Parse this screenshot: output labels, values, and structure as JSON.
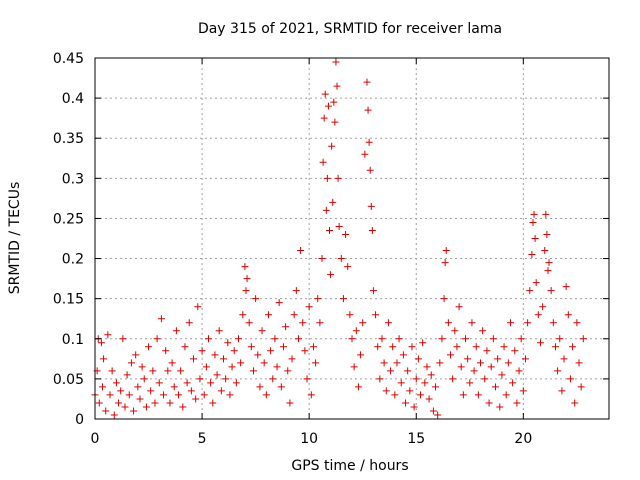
{
  "chart_data": {
    "type": "scatter",
    "title": "Day 315 of 2021, SRMTID for receiver lama",
    "xlabel": "GPS time / hours",
    "ylabel": "SRMTID / TECUs",
    "xlim": [
      0,
      24
    ],
    "ylim": [
      0,
      0.45
    ],
    "xticks": [
      0,
      5,
      10,
      15,
      20
    ],
    "xtick_labels": [
      "0",
      "5",
      "10",
      "15",
      "20"
    ],
    "yticks": [
      0,
      0.05,
      0.1,
      0.15,
      0.2,
      0.25,
      0.3,
      0.35,
      0.4,
      0.45
    ],
    "ytick_labels": [
      "0",
      "0.05",
      "0.1",
      "0.15",
      "0.2",
      "0.25",
      "0.3",
      "0.35",
      "0.4",
      "0.45"
    ],
    "grid": true,
    "marker": "+",
    "marker_color": "#e00000",
    "series": [
      {
        "name": "SRMTID",
        "points": [
          [
            0.0,
            0.03
          ],
          [
            0.1,
            0.06
          ],
          [
            0.15,
            0.1
          ],
          [
            0.2,
            0.02
          ],
          [
            0.3,
            0.095
          ],
          [
            0.35,
            0.04
          ],
          [
            0.4,
            0.075
          ],
          [
            0.5,
            0.01
          ],
          [
            0.6,
            0.105
          ],
          [
            0.7,
            0.03
          ],
          [
            0.8,
            0.06
          ],
          [
            0.9,
            0.005
          ],
          [
            1.0,
            0.045
          ],
          [
            1.1,
            0.02
          ],
          [
            1.2,
            0.035
          ],
          [
            1.3,
            0.1
          ],
          [
            1.4,
            0.015
          ],
          [
            1.5,
            0.055
          ],
          [
            1.6,
            0.03
          ],
          [
            1.7,
            0.07
          ],
          [
            1.8,
            0.01
          ],
          [
            1.9,
            0.08
          ],
          [
            2.0,
            0.04
          ],
          [
            2.1,
            0.025
          ],
          [
            2.2,
            0.065
          ],
          [
            2.3,
            0.05
          ],
          [
            2.4,
            0.015
          ],
          [
            2.5,
            0.09
          ],
          [
            2.6,
            0.035
          ],
          [
            2.7,
            0.06
          ],
          [
            2.8,
            0.02
          ],
          [
            2.9,
            0.1
          ],
          [
            3.0,
            0.045
          ],
          [
            3.1,
            0.125
          ],
          [
            3.2,
            0.03
          ],
          [
            3.3,
            0.085
          ],
          [
            3.4,
            0.06
          ],
          [
            3.5,
            0.02
          ],
          [
            3.6,
            0.07
          ],
          [
            3.7,
            0.04
          ],
          [
            3.8,
            0.11
          ],
          [
            3.9,
            0.03
          ],
          [
            4.0,
            0.06
          ],
          [
            4.1,
            0.015
          ],
          [
            4.2,
            0.09
          ],
          [
            4.3,
            0.045
          ],
          [
            4.4,
            0.12
          ],
          [
            4.5,
            0.035
          ],
          [
            4.6,
            0.075
          ],
          [
            4.7,
            0.025
          ],
          [
            4.8,
            0.14
          ],
          [
            4.9,
            0.05
          ],
          [
            5.0,
            0.085
          ],
          [
            5.1,
            0.03
          ],
          [
            5.2,
            0.065
          ],
          [
            5.3,
            0.1
          ],
          [
            5.4,
            0.045
          ],
          [
            5.5,
            0.02
          ],
          [
            5.6,
            0.08
          ],
          [
            5.7,
            0.055
          ],
          [
            5.8,
            0.11
          ],
          [
            5.9,
            0.035
          ],
          [
            6.0,
            0.075
          ],
          [
            6.1,
            0.05
          ],
          [
            6.2,
            0.095
          ],
          [
            6.3,
            0.03
          ],
          [
            6.4,
            0.065
          ],
          [
            6.5,
            0.085
          ],
          [
            6.6,
            0.045
          ],
          [
            6.7,
            0.1
          ],
          [
            6.8,
            0.07
          ],
          [
            6.9,
            0.13
          ],
          [
            7.0,
            0.19
          ],
          [
            7.05,
            0.16
          ],
          [
            7.1,
            0.175
          ],
          [
            7.2,
            0.12
          ],
          [
            7.3,
            0.09
          ],
          [
            7.4,
            0.06
          ],
          [
            7.5,
            0.15
          ],
          [
            7.6,
            0.08
          ],
          [
            7.7,
            0.04
          ],
          [
            7.8,
            0.11
          ],
          [
            7.9,
            0.07
          ],
          [
            8.0,
            0.03
          ],
          [
            8.1,
            0.13
          ],
          [
            8.2,
            0.085
          ],
          [
            8.3,
            0.05
          ],
          [
            8.4,
            0.1
          ],
          [
            8.5,
            0.065
          ],
          [
            8.6,
            0.145
          ],
          [
            8.7,
            0.04
          ],
          [
            8.8,
            0.09
          ],
          [
            8.9,
            0.115
          ],
          [
            9.0,
            0.06
          ],
          [
            9.1,
            0.02
          ],
          [
            9.2,
            0.075
          ],
          [
            9.3,
            0.13
          ],
          [
            9.4,
            0.16
          ],
          [
            9.5,
            0.1
          ],
          [
            9.6,
            0.21
          ],
          [
            9.7,
            0.12
          ],
          [
            9.8,
            0.085
          ],
          [
            9.9,
            0.05
          ],
          [
            10.0,
            0.14
          ],
          [
            10.1,
            0.03
          ],
          [
            10.2,
            0.09
          ],
          [
            10.3,
            0.07
          ],
          [
            10.4,
            0.15
          ],
          [
            10.5,
            0.12
          ],
          [
            10.6,
            0.2
          ],
          [
            10.65,
            0.32
          ],
          [
            10.7,
            0.375
          ],
          [
            10.75,
            0.405
          ],
          [
            10.8,
            0.26
          ],
          [
            10.85,
            0.3
          ],
          [
            10.9,
            0.39
          ],
          [
            10.95,
            0.235
          ],
          [
            11.0,
            0.18
          ],
          [
            11.05,
            0.34
          ],
          [
            11.1,
            0.27
          ],
          [
            11.15,
            0.395
          ],
          [
            11.2,
            0.37
          ],
          [
            11.25,
            0.445
          ],
          [
            11.3,
            0.415
          ],
          [
            11.35,
            0.3
          ],
          [
            11.4,
            0.24
          ],
          [
            11.5,
            0.2
          ],
          [
            11.6,
            0.15
          ],
          [
            11.7,
            0.23
          ],
          [
            11.8,
            0.19
          ],
          [
            11.9,
            0.13
          ],
          [
            12.0,
            0.1
          ],
          [
            12.1,
            0.065
          ],
          [
            12.2,
            0.11
          ],
          [
            12.3,
            0.04
          ],
          [
            12.4,
            0.08
          ],
          [
            12.5,
            0.12
          ],
          [
            12.6,
            0.33
          ],
          [
            12.7,
            0.42
          ],
          [
            12.75,
            0.385
          ],
          [
            12.8,
            0.345
          ],
          [
            12.85,
            0.31
          ],
          [
            12.9,
            0.265
          ],
          [
            12.95,
            0.235
          ],
          [
            13.0,
            0.16
          ],
          [
            13.1,
            0.13
          ],
          [
            13.2,
            0.09
          ],
          [
            13.3,
            0.05
          ],
          [
            13.4,
            0.1
          ],
          [
            13.5,
            0.07
          ],
          [
            13.6,
            0.035
          ],
          [
            13.7,
            0.12
          ],
          [
            13.8,
            0.06
          ],
          [
            13.9,
            0.09
          ],
          [
            14.0,
            0.03
          ],
          [
            14.1,
            0.07
          ],
          [
            14.2,
            0.1
          ],
          [
            14.3,
            0.045
          ],
          [
            14.4,
            0.08
          ],
          [
            14.5,
            0.02
          ],
          [
            14.6,
            0.06
          ],
          [
            14.7,
            0.035
          ],
          [
            14.8,
            0.09
          ],
          [
            14.9,
            0.015
          ],
          [
            15.0,
            0.05
          ],
          [
            15.1,
            0.075
          ],
          [
            15.2,
            0.03
          ],
          [
            15.3,
            0.095
          ],
          [
            15.4,
            0.045
          ],
          [
            15.5,
            0.065
          ],
          [
            15.6,
            0.025
          ],
          [
            15.7,
            0.055
          ],
          [
            15.8,
            0.01
          ],
          [
            15.9,
            0.04
          ],
          [
            16.0,
            0.005
          ],
          [
            16.1,
            0.07
          ],
          [
            16.2,
            0.1
          ],
          [
            16.3,
            0.15
          ],
          [
            16.35,
            0.195
          ],
          [
            16.4,
            0.21
          ],
          [
            16.5,
            0.12
          ],
          [
            16.6,
            0.08
          ],
          [
            16.7,
            0.05
          ],
          [
            16.8,
            0.11
          ],
          [
            16.9,
            0.09
          ],
          [
            17.0,
            0.14
          ],
          [
            17.1,
            0.065
          ],
          [
            17.2,
            0.03
          ],
          [
            17.3,
            0.1
          ],
          [
            17.4,
            0.075
          ],
          [
            17.5,
            0.045
          ],
          [
            17.6,
            0.12
          ],
          [
            17.7,
            0.06
          ],
          [
            17.8,
            0.09
          ],
          [
            17.9,
            0.03
          ],
          [
            18.0,
            0.07
          ],
          [
            18.1,
            0.11
          ],
          [
            18.2,
            0.05
          ],
          [
            18.3,
            0.085
          ],
          [
            18.4,
            0.02
          ],
          [
            18.5,
            0.065
          ],
          [
            18.6,
            0.1
          ],
          [
            18.7,
            0.04
          ],
          [
            18.8,
            0.075
          ],
          [
            18.9,
            0.015
          ],
          [
            19.0,
            0.055
          ],
          [
            19.1,
            0.09
          ],
          [
            19.2,
            0.03
          ],
          [
            19.3,
            0.07
          ],
          [
            19.4,
            0.12
          ],
          [
            19.5,
            0.045
          ],
          [
            19.6,
            0.085
          ],
          [
            19.7,
            0.02
          ],
          [
            19.8,
            0.06
          ],
          [
            19.9,
            0.1
          ],
          [
            20.0,
            0.035
          ],
          [
            20.1,
            0.075
          ],
          [
            20.2,
            0.12
          ],
          [
            20.3,
            0.16
          ],
          [
            20.4,
            0.205
          ],
          [
            20.45,
            0.245
          ],
          [
            20.5,
            0.255
          ],
          [
            20.55,
            0.225
          ],
          [
            20.6,
            0.17
          ],
          [
            20.7,
            0.13
          ],
          [
            20.8,
            0.095
          ],
          [
            20.9,
            0.14
          ],
          [
            21.0,
            0.21
          ],
          [
            21.05,
            0.255
          ],
          [
            21.1,
            0.23
          ],
          [
            21.15,
            0.185
          ],
          [
            21.2,
            0.195
          ],
          [
            21.3,
            0.16
          ],
          [
            21.4,
            0.12
          ],
          [
            21.5,
            0.09
          ],
          [
            21.6,
            0.06
          ],
          [
            21.7,
            0.1
          ],
          [
            21.8,
            0.035
          ],
          [
            21.9,
            0.075
          ],
          [
            22.0,
            0.165
          ],
          [
            22.1,
            0.13
          ],
          [
            22.2,
            0.05
          ],
          [
            22.3,
            0.09
          ],
          [
            22.4,
            0.02
          ],
          [
            22.5,
            0.12
          ],
          [
            22.6,
            0.07
          ],
          [
            22.7,
            0.04
          ],
          [
            22.8,
            0.1
          ]
        ]
      }
    ]
  }
}
